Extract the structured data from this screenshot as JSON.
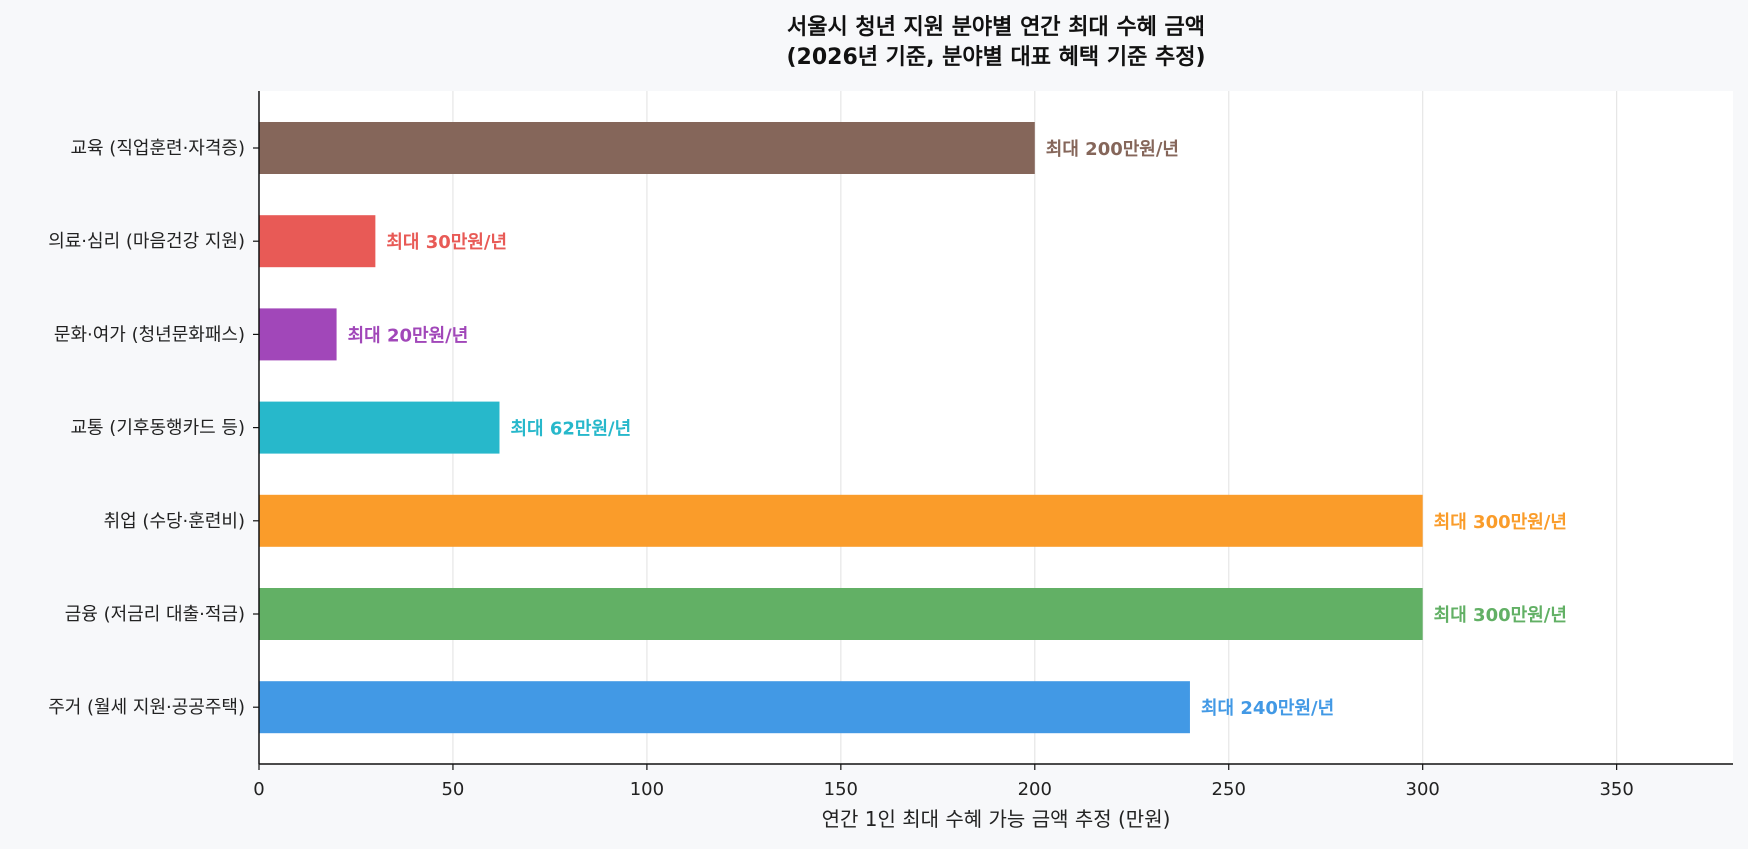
{
  "chart_data": {
    "type": "bar",
    "orientation": "horizontal",
    "title": "서울시 청년 지원 분야별 연간 최대 수혜 금액",
    "subtitle": "(2026년 기준, 분야별 대표 혜택 기준 추정)",
    "xlabel": "연간 1인 최대 수혜 가능 금액 추정 (만원)",
    "ylabel": "",
    "xlim": [
      0,
      380
    ],
    "xticks": [
      0,
      50,
      100,
      150,
      200,
      250,
      300,
      350
    ],
    "grid": "x",
    "categories": [
      "교육 (직업훈련·자격증)",
      "의료·심리 (마음건강 지원)",
      "문화·여가 (청년문화패스)",
      "교통 (기후동행카드 등)",
      "취업 (수당·훈련비)",
      "금융 (저금리 대출·적금)",
      "주거 (월세 지원·공공주택)"
    ],
    "values": [
      200,
      30,
      20,
      62,
      300,
      300,
      240
    ],
    "colors": [
      "#85665a",
      "#e85a56",
      "#a147b9",
      "#27b8cb",
      "#fa9c2a",
      "#62b065",
      "#4299e5"
    ],
    "data_labels": [
      "최대 200만원/년",
      "최대 30만원/년",
      "최대 20만원/년",
      "최대 62만원/년",
      "최대 300만원/년",
      "최대 300만원/년",
      "최대 240만원/년"
    ]
  }
}
